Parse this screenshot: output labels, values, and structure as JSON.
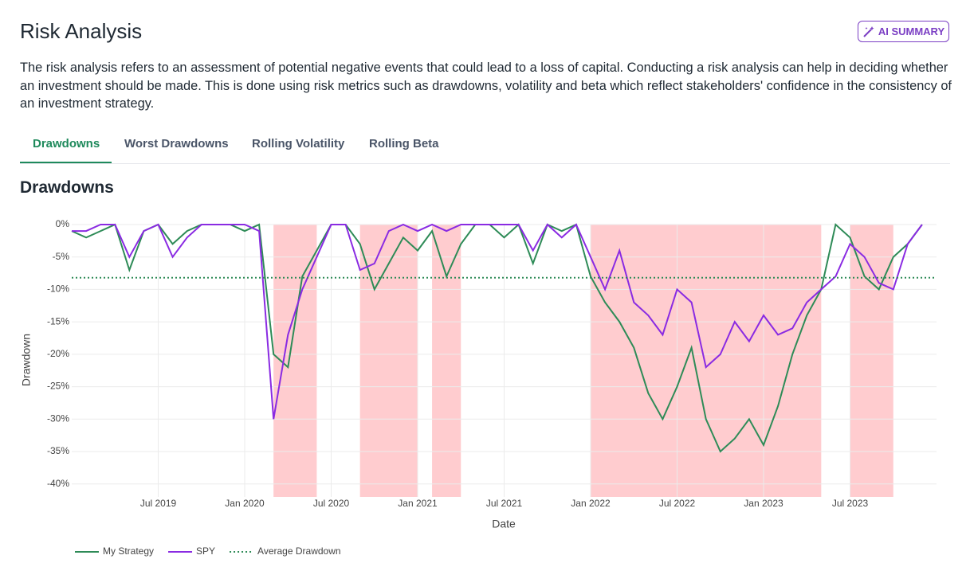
{
  "header": {
    "title": "Risk Analysis",
    "button": "AI SUMMARY",
    "description": "The risk analysis refers to an assessment of potential negative events that could lead to a loss of capital. Conducting a risk analysis can help in deciding whether an investment should be made. This is done using risk metrics such as drawdowns, volatility and beta which reflect stakeholders' confidence in the consistency of an investment strategy."
  },
  "tabs": [
    "Drawdowns",
    "Worst Drawdowns",
    "Rolling Volatility",
    "Rolling Beta"
  ],
  "chart_data": {
    "type": "line",
    "title": "Drawdowns",
    "xlabel": "Date",
    "ylabel": "Drawdown",
    "x": [
      "2019-01",
      "2019-02",
      "2019-03",
      "2019-04",
      "2019-05",
      "2019-06",
      "2019-07",
      "2019-08",
      "2019-09",
      "2019-10",
      "2019-11",
      "2019-12",
      "2020-01",
      "2020-02",
      "2020-03",
      "2020-04",
      "2020-05",
      "2020-06",
      "2020-07",
      "2020-08",
      "2020-09",
      "2020-10",
      "2020-11",
      "2020-12",
      "2021-01",
      "2021-02",
      "2021-03",
      "2021-04",
      "2021-05",
      "2021-06",
      "2021-07",
      "2021-08",
      "2021-09",
      "2021-10",
      "2021-11",
      "2021-12",
      "2022-01",
      "2022-02",
      "2022-03",
      "2022-04",
      "2022-05",
      "2022-06",
      "2022-07",
      "2022-08",
      "2022-09",
      "2022-10",
      "2022-11",
      "2022-12",
      "2023-01",
      "2023-02",
      "2023-03",
      "2023-04",
      "2023-05",
      "2023-06",
      "2023-07",
      "2023-08",
      "2023-09",
      "2023-10",
      "2023-11",
      "2023-12"
    ],
    "series": [
      {
        "name": "My Strategy",
        "color": "#2e8b57",
        "values": [
          -1,
          -2,
          -1,
          0,
          -7,
          -1,
          0,
          -3,
          -1,
          0,
          0,
          0,
          -1,
          0,
          -20,
          -22,
          -8,
          -4,
          0,
          0,
          -3,
          -10,
          -6,
          -2,
          -4,
          -1,
          -8,
          -3,
          0,
          0,
          -2,
          0,
          -6,
          0,
          -1,
          0,
          -8,
          -12,
          -15,
          -19,
          -26,
          -30,
          -25,
          -19,
          -30,
          -35,
          -33,
          -30,
          -34,
          -28,
          -20,
          -14,
          -10,
          0,
          -2,
          -8,
          -10,
          -5,
          -3,
          0
        ]
      },
      {
        "name": "SPY",
        "color": "#8a2be2",
        "values": [
          -1,
          -1,
          0,
          0,
          -5,
          -1,
          0,
          -5,
          -2,
          0,
          0,
          0,
          0,
          -1,
          -30,
          -17,
          -10,
          -5,
          0,
          0,
          -7,
          -6,
          -1,
          0,
          -1,
          0,
          -1,
          0,
          0,
          0,
          0,
          0,
          -4,
          0,
          -2,
          0,
          -5,
          -10,
          -4,
          -12,
          -14,
          -17,
          -10,
          -12,
          -22,
          -20,
          -15,
          -18,
          -14,
          -17,
          -16,
          -12,
          -10,
          -8,
          -3,
          -5,
          -9,
          -10,
          -3,
          0
        ]
      }
    ],
    "average_drawdown": {
      "name": "Average Drawdown",
      "value": -8.2,
      "color": "#2e8b57"
    },
    "shaded_regions": [
      {
        "start": "2020-03",
        "end": "2020-06"
      },
      {
        "start": "2020-09",
        "end": "2021-01"
      },
      {
        "start": "2021-02",
        "end": "2021-04"
      },
      {
        "start": "2022-01",
        "end": "2023-05"
      },
      {
        "start": "2023-07",
        "end": "2023-10"
      }
    ],
    "shaded_color": "#ffcccf",
    "xlim": [
      "2019-01",
      "2024-01"
    ],
    "xticks": [
      {
        "value": "2019-07",
        "label": "Jul 2019"
      },
      {
        "value": "2020-01",
        "label": "Jan 2020"
      },
      {
        "value": "2020-07",
        "label": "Jul 2020"
      },
      {
        "value": "2021-01",
        "label": "Jan 2021"
      },
      {
        "value": "2021-07",
        "label": "Jul 2021"
      },
      {
        "value": "2022-01",
        "label": "Jan 2022"
      },
      {
        "value": "2022-07",
        "label": "Jul 2022"
      },
      {
        "value": "2023-01",
        "label": "Jan 2023"
      },
      {
        "value": "2023-07",
        "label": "Jul 2023"
      }
    ],
    "ylim": [
      -42,
      0
    ],
    "yticks": [
      {
        "value": 0,
        "label": "0%"
      },
      {
        "value": -5,
        "label": "-5%"
      },
      {
        "value": -10,
        "label": "-10%"
      },
      {
        "value": -15,
        "label": "-15%"
      },
      {
        "value": -20,
        "label": "-20%"
      },
      {
        "value": -25,
        "label": "-25%"
      },
      {
        "value": -30,
        "label": "-30%"
      },
      {
        "value": -35,
        "label": "-35%"
      },
      {
        "value": -40,
        "label": "-40%"
      }
    ],
    "grid": true
  }
}
